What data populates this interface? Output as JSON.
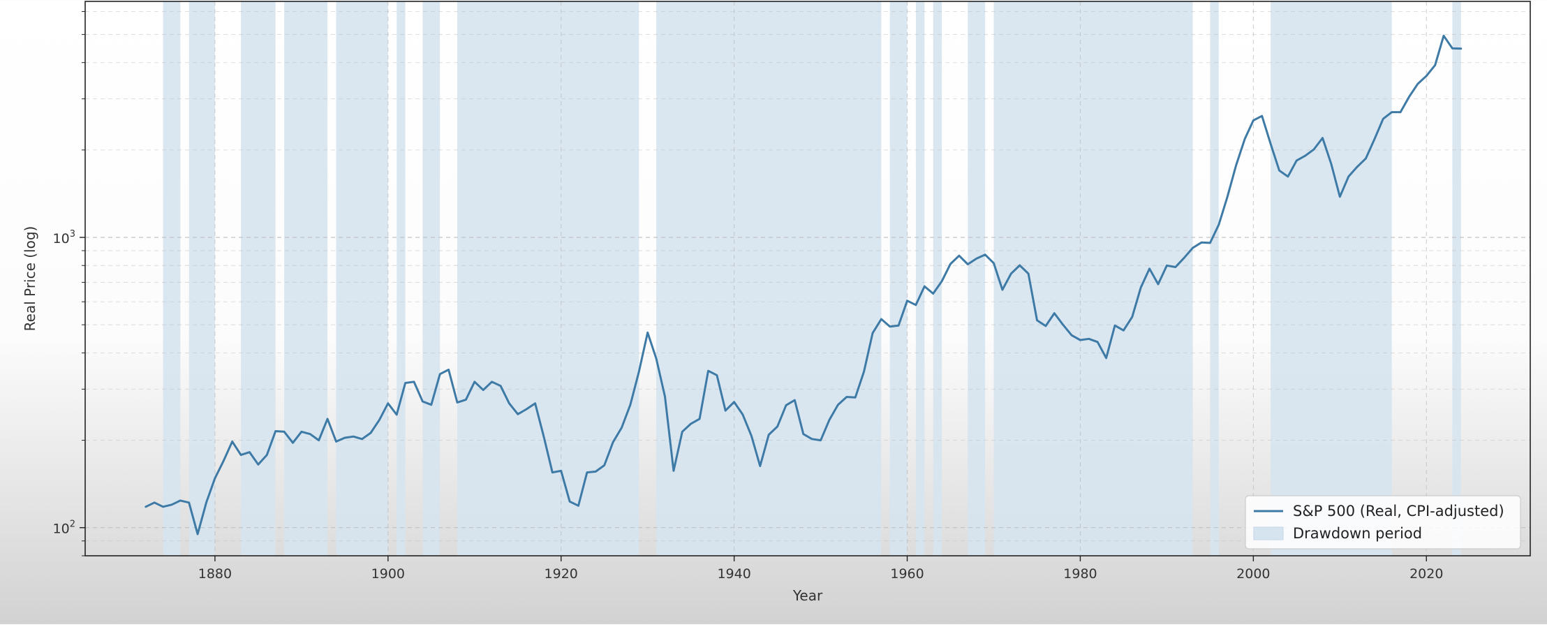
{
  "chart_data": {
    "type": "line",
    "title": "",
    "xlabel": "Year",
    "ylabel": "Real Price (log)",
    "xlim": [
      1865,
      2032
    ],
    "ylim": [
      80,
      6500
    ],
    "yscale": "log",
    "grid": true,
    "legend_position": "lower right",
    "x_ticks": [
      1880,
      1900,
      1920,
      1940,
      1960,
      1980,
      2000,
      2020
    ],
    "y_ticks": [
      {
        "value": 100,
        "label": "10",
        "exp": "2"
      },
      {
        "value": 1000,
        "label": "10",
        "exp": "3"
      }
    ],
    "colors": {
      "line": "#3e7aa6",
      "shade": "#d6e4f0",
      "grid": "#b8b8b8",
      "axes": "#222222"
    },
    "legend": [
      {
        "label": "S&P 500 (Real, CPI-adjusted)",
        "kind": "line"
      },
      {
        "label": "Drawdown period",
        "kind": "patch"
      }
    ],
    "drawdown_periods": [
      [
        1874,
        1876
      ],
      [
        1877,
        1880
      ],
      [
        1883,
        1887
      ],
      [
        1888,
        1893
      ],
      [
        1894,
        1900
      ],
      [
        1901,
        1902
      ],
      [
        1904,
        1906
      ],
      [
        1908,
        1929
      ],
      [
        1931,
        1957
      ],
      [
        1958,
        1960
      ],
      [
        1961,
        1962
      ],
      [
        1963,
        1964
      ],
      [
        1967,
        1969
      ],
      [
        1970,
        1993
      ],
      [
        1995,
        1996
      ],
      [
        2002,
        2016
      ],
      [
        2023,
        2024
      ]
    ],
    "series": [
      {
        "name": "S&P 500 (Real, CPI-adjusted)",
        "x": [
          1872,
          1873,
          1874,
          1875,
          1876,
          1877,
          1878,
          1879,
          1880,
          1881,
          1882,
          1883,
          1884,
          1885,
          1886,
          1887,
          1888,
          1889,
          1890,
          1891,
          1892,
          1893,
          1894,
          1895,
          1896,
          1897,
          1898,
          1899,
          1900,
          1901,
          1902,
          1903,
          1904,
          1905,
          1906,
          1907,
          1908,
          1909,
          1910,
          1911,
          1912,
          1913,
          1914,
          1915,
          1916,
          1917,
          1918,
          1919,
          1920,
          1921,
          1922,
          1923,
          1924,
          1925,
          1926,
          1927,
          1928,
          1929,
          1930,
          1931,
          1932,
          1933,
          1934,
          1935,
          1936,
          1937,
          1938,
          1939,
          1940,
          1941,
          1942,
          1943,
          1944,
          1945,
          1946,
          1947,
          1948,
          1949,
          1950,
          1951,
          1952,
          1953,
          1954,
          1955,
          1956,
          1957,
          1958,
          1959,
          1960,
          1961,
          1962,
          1963,
          1964,
          1965,
          1966,
          1967,
          1968,
          1969,
          1970,
          1971,
          1972,
          1973,
          1974,
          1975,
          1976,
          1977,
          1978,
          1979,
          1980,
          1981,
          1982,
          1983,
          1984,
          1985,
          1986,
          1987,
          1988,
          1989,
          1990,
          1991,
          1992,
          1993,
          1994,
          1995,
          1996,
          1997,
          1998,
          1999,
          2000,
          2001,
          2002,
          2003,
          2004,
          2005,
          2006,
          2007,
          2008,
          2009,
          2010,
          2011,
          2012,
          2013,
          2014,
          2015,
          2016,
          2017,
          2018,
          2019,
          2020,
          2021,
          2022,
          2023,
          2024
        ],
        "values": [
          118,
          122,
          118,
          120,
          124,
          122,
          95,
          122,
          148,
          170,
          198,
          178,
          182,
          165,
          178,
          215,
          214,
          196,
          214,
          210,
          200,
          237,
          198,
          204,
          206,
          202,
          212,
          235,
          268,
          245,
          315,
          318,
          272,
          265,
          338,
          350,
          270,
          276,
          318,
          298,
          318,
          308,
          268,
          246,
          256,
          268,
          206,
          155,
          157,
          123,
          119,
          155,
          156,
          164,
          197,
          221,
          265,
          345,
          470,
          382,
          283,
          157,
          214,
          228,
          237,
          347,
          335,
          253,
          271,
          245,
          207,
          163,
          209,
          223,
          264,
          275,
          210,
          202,
          200,
          235,
          265,
          282,
          281,
          345,
          468,
          523,
          493,
          497,
          605,
          585,
          678,
          640,
          706,
          810,
          865,
          808,
          845,
          872,
          815,
          660,
          750,
          801,
          750,
          518,
          495,
          548,
          500,
          460,
          443,
          447,
          436,
          384,
          497,
          478,
          532,
          672,
          780,
          690,
          800,
          790,
          850,
          920,
          960,
          957,
          1105,
          1380,
          1770,
          2180,
          2530,
          2620,
          2100,
          1700,
          1620,
          1840,
          1910,
          2010,
          2200,
          1790,
          1380,
          1620,
          1750,
          1870,
          2180,
          2560,
          2700,
          2700,
          3050,
          3380,
          3600,
          3920,
          4950,
          4480,
          4470
        ]
      }
    ]
  }
}
